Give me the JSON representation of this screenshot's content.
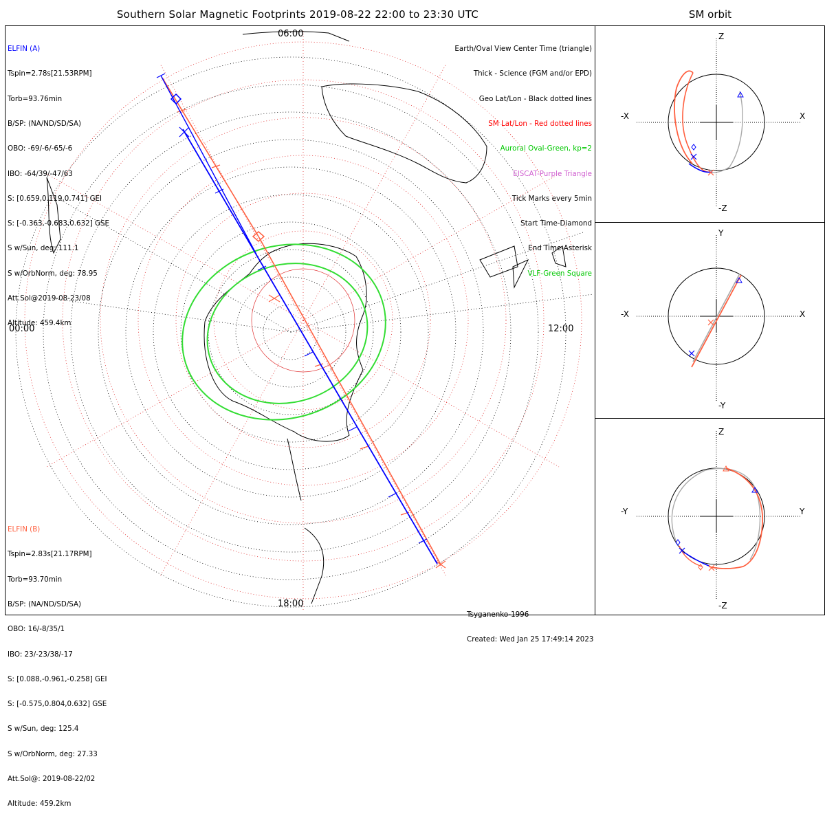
{
  "title": "Southern Solar Magnetic Footprints 2019-08-22 22:00 to 23:30 UTC",
  "right_title": "SM orbit",
  "map": {
    "mlt_labels": {
      "top": "06:00",
      "left": "00:00",
      "right": "12:00",
      "bottom": "18:00"
    },
    "legend": [
      {
        "text": "Earth/Oval View Center Time (triangle)",
        "color": "#000000"
      },
      {
        "text": "Thick - Science (FGM and/or EPD)",
        "color": "#000000"
      },
      {
        "text": "Geo Lat/Lon - Black dotted lines",
        "color": "#000000"
      },
      {
        "text": "SM Lat/Lon - Red dotted lines",
        "color": "#ff0000"
      },
      {
        "text": "Auroral Oval-Green, kp=2",
        "color": "#00c800"
      },
      {
        "text": "EISCAT-Purple Triangle",
        "color": "#d060d0"
      },
      {
        "text": "Tick Marks every 5min",
        "color": "#000000"
      },
      {
        "text": "Start Time-Diamond",
        "color": "#000000"
      },
      {
        "text": "End Time-Asterisk",
        "color": "#000000"
      },
      {
        "text": "VLF-Green Square",
        "color": "#00c800"
      }
    ],
    "elfin_a": {
      "name": "ELFIN (A)",
      "color": "#0000ff",
      "lines": [
        "Tspin=2.78s[21.53RPM]",
        "Torb=93.76min",
        "B/SP: (NA/ND/SD/SA)",
        "OBO: -69/-6/-65/-6",
        "IBO: -64/39/-47/63",
        "S: [0.659,0.119,0.741] GEI",
        "S: [-0.363,-0.683,0.632] GSE",
        "S w/Sun, deg: 111.1",
        "S w/OrbNorm, deg: 78.95",
        "Att.Sol@2019-08-23/08",
        "Altitude: 459.4km"
      ]
    },
    "elfin_b": {
      "name": "ELFIN (B)",
      "color": "#ff6040",
      "lines": [
        "Tspin=2.83s[21.17RPM]",
        "Torb=93.70min",
        "B/SP: (NA/ND/SD/SA)",
        "OBO: 16/-8/35/1",
        "IBO: 23/-23/38/-17",
        "S: [0.088,-0.961,-0.258] GEI",
        "S: [-0.575,0.804,0.632] GSE",
        "S w/Sun, deg: 125.4",
        "S w/OrbNorm, deg: 27.33",
        "Att.Sol@: 2019-08-22/02",
        "Altitude: 459.2km"
      ]
    },
    "credit": [
      "Tsyganenko-1996",
      "Created: Wed Jan 25 17:49:14 2023"
    ]
  },
  "orbit_panels": [
    {
      "top": "Z",
      "bottom": "-Z",
      "left": "-X",
      "right": "X"
    },
    {
      "top": "Y",
      "bottom": "-Y",
      "left": "-X",
      "right": "X"
    },
    {
      "top": "Z",
      "bottom": "-Z",
      "left": "-Y",
      "right": "Y"
    }
  ],
  "colors": {
    "elfin_a": "#0000ff",
    "elfin_b": "#ff6040",
    "oval": "#33dd33",
    "sm_grid": "#e03030",
    "geo_grid": "#000000",
    "coast": "#000000"
  }
}
